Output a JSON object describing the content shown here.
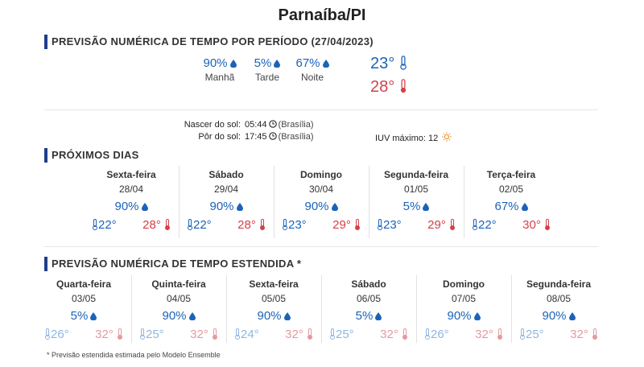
{
  "page_title": "Parnaíba/PI",
  "periodo": {
    "heading": "PREVISÃO NUMÉRICA DE TEMPO POR PERÍODO (27/04/2023)",
    "items": [
      {
        "pct": "90%",
        "label": "Manhã"
      },
      {
        "pct": "5%",
        "label": "Tarde"
      },
      {
        "pct": "67%",
        "label": "Noite"
      }
    ],
    "tmin": "23°",
    "tmax": "28°"
  },
  "sol": {
    "nascer_label": "Nascer do sol:",
    "nascer_time": "05:44",
    "nascer_tz": "(Brasília)",
    "por_label": "Pôr do sol:",
    "por_time": "17:45",
    "por_tz": "(Brasília)",
    "iuv_label": "IUV máximo:",
    "iuv_value": "12"
  },
  "proximos": {
    "heading": "PRÓXIMOS DIAS",
    "days": [
      {
        "name": "Sexta-feira",
        "date": "28/04",
        "pct": "90%",
        "tmin": "22°",
        "tmax": "28°"
      },
      {
        "name": "Sábado",
        "date": "29/04",
        "pct": "90%",
        "tmin": "22°",
        "tmax": "28°"
      },
      {
        "name": "Domingo",
        "date": "30/04",
        "pct": "90%",
        "tmin": "23°",
        "tmax": "29°"
      },
      {
        "name": "Segunda-feira",
        "date": "01/05",
        "pct": "5%",
        "tmin": "23°",
        "tmax": "29°"
      },
      {
        "name": "Terça-feira",
        "date": "02/05",
        "pct": "67%",
        "tmin": "22°",
        "tmax": "30°"
      }
    ]
  },
  "estendida": {
    "heading": "PREVISÃO NUMÉRICA DE TEMPO ESTENDIDA *",
    "days": [
      {
        "name": "Quarta-feira",
        "date": "03/05",
        "pct": "5%",
        "tmin": "26°",
        "tmax": "32°"
      },
      {
        "name": "Quinta-feira",
        "date": "04/05",
        "pct": "90%",
        "tmin": "25°",
        "tmax": "32°"
      },
      {
        "name": "Sexta-feira",
        "date": "05/05",
        "pct": "90%",
        "tmin": "24°",
        "tmax": "32°"
      },
      {
        "name": "Sábado",
        "date": "06/05",
        "pct": "5%",
        "tmin": "25°",
        "tmax": "32°"
      },
      {
        "name": "Domingo",
        "date": "07/05",
        "pct": "90%",
        "tmin": "26°",
        "tmax": "32°"
      },
      {
        "name": "Segunda-feira",
        "date": "08/05",
        "pct": "90%",
        "tmin": "25°",
        "tmax": "32°"
      }
    ],
    "footnote": "* Previsão estendida estimada pelo Modelo Ensemble"
  },
  "colors": {
    "blue": "#1c63b7",
    "red": "#d5404a",
    "accent_bar": "#1f3d8a",
    "uv_icon": "#f08a24"
  }
}
